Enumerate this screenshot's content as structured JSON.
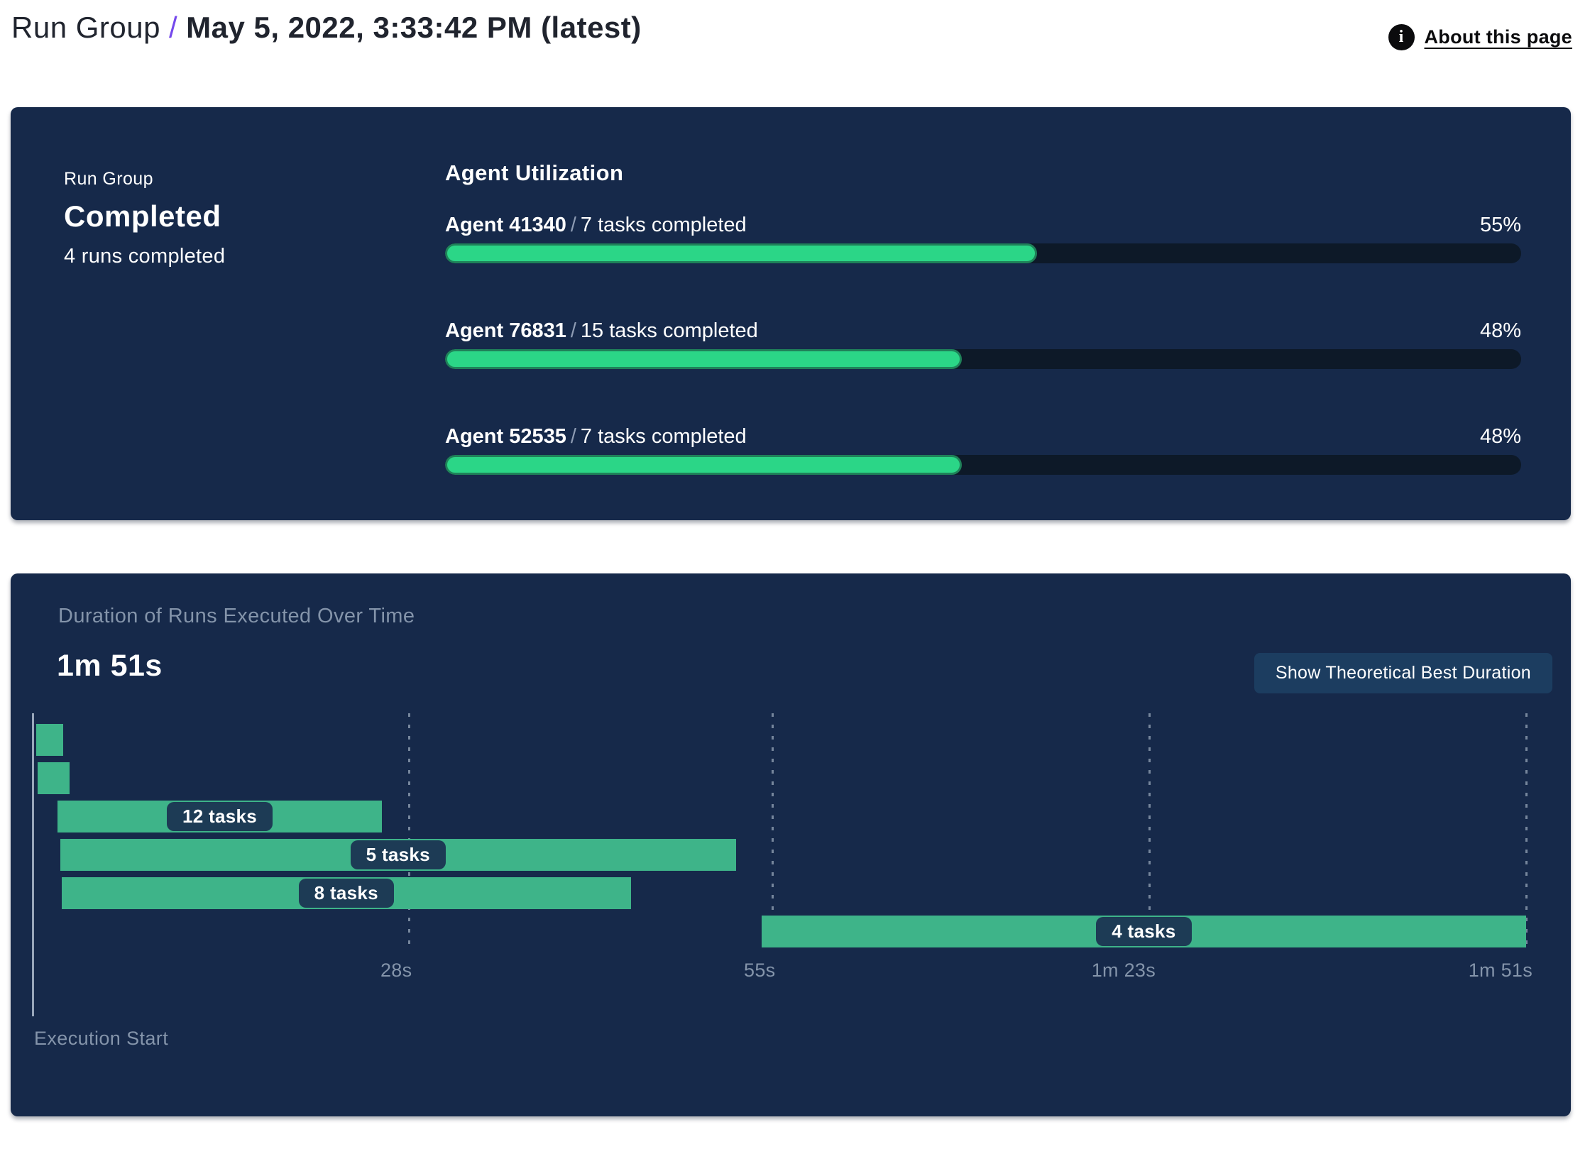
{
  "colors": {
    "page_bg": "#ffffff",
    "card_bg": "#16294a",
    "track_bg": "#0d1928",
    "progress_fill": "#2bd687",
    "progress_border": "#1f8159",
    "gantt_bar": "#3eb489",
    "pill_bg": "#1d3b55",
    "button_bg": "#1c3d60",
    "muted_text": "#8494aa",
    "axis_line": "#98a6ba",
    "header_text": "#20242e",
    "accent_slash": "#7549ec"
  },
  "header": {
    "breadcrumb_root": "Run Group",
    "separator": "/",
    "title": "May 5, 2022, 3:33:42 PM (latest)",
    "about_link": "About this page",
    "info_icon_glyph": "i"
  },
  "status_card": {
    "label": "Run Group",
    "status": "Completed",
    "runs_completed": "4 runs completed",
    "utilization": {
      "heading": "Agent Utilization",
      "agents": [
        {
          "name": "Agent 41340",
          "separator": "/",
          "tasks": "7 tasks completed",
          "percent": "55%",
          "value": 55
        },
        {
          "name": "Agent 76831",
          "separator": "/",
          "tasks": "15 tasks completed",
          "percent": "48%",
          "value": 48
        },
        {
          "name": "Agent 52535",
          "separator": "/",
          "tasks": "7 tasks completed",
          "percent": "48%",
          "value": 48
        }
      ]
    }
  },
  "duration_card": {
    "title": "Duration of Runs Executed Over Time",
    "total_duration": "1m 51s",
    "button_label": "Show Theoretical Best Duration",
    "execution_start_label": "Execution Start"
  },
  "chart_data": {
    "type": "gantt",
    "title": "Duration of Runs Executed Over Time",
    "total_duration_label": "1m 51s",
    "xlabel": "Execution Start",
    "grid": "dashed-vertical",
    "time_axis": {
      "domain_seconds": [
        0,
        111
      ],
      "ticks": [
        {
          "label": "28s",
          "seconds": 28
        },
        {
          "label": "55s",
          "seconds": 55
        },
        {
          "label": "1m 23s",
          "seconds": 83
        },
        {
          "label": "1m 51s",
          "seconds": 111
        }
      ]
    },
    "runs": [
      {
        "label": "",
        "tasks": null,
        "start_s": 0.3,
        "end_s": 2.3
      },
      {
        "label": "",
        "tasks": null,
        "start_s": 0.4,
        "end_s": 2.8
      },
      {
        "label": "12 tasks",
        "tasks": 12,
        "start_s": 1.9,
        "end_s": 26.0
      },
      {
        "label": "5 tasks",
        "tasks": 5,
        "start_s": 2.1,
        "end_s": 52.3
      },
      {
        "label": "8 tasks",
        "tasks": 8,
        "start_s": 2.2,
        "end_s": 44.5
      },
      {
        "label": "4 tasks",
        "tasks": 4,
        "start_s": 54.2,
        "end_s": 111.0
      }
    ]
  }
}
